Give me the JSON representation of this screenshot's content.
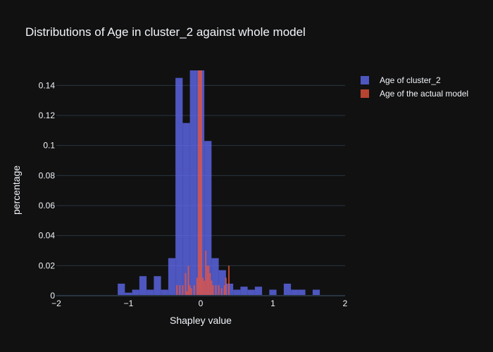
{
  "chart_data": {
    "type": "bar",
    "title": "Distributions of Age in cluster_2 against whole model",
    "xlabel": "Shapley value",
    "ylabel": "percentage",
    "xlim": [
      -2,
      2
    ],
    "ylim": [
      0,
      0.15
    ],
    "x_ticks": [
      -2,
      -1,
      0,
      1,
      2
    ],
    "x_tick_labels": [
      "−2",
      "−1",
      "0",
      "1",
      "2"
    ],
    "y_ticks": [
      0,
      0.02,
      0.04,
      0.06,
      0.08,
      0.1,
      0.12,
      0.14
    ],
    "y_tick_labels": [
      "0",
      "0.02",
      "0.04",
      "0.06",
      "0.08",
      "0.1",
      "0.12",
      "0.14"
    ],
    "grid": true,
    "legend_position": "top-right",
    "series": [
      {
        "name": "Age of cluster_2",
        "color": "#636efa",
        "opacity": 0.75,
        "bin_width": 0.1,
        "x": [
          -1.1,
          -1.0,
          -0.9,
          -0.8,
          -0.7,
          -0.6,
          -0.5,
          -0.4,
          -0.3,
          -0.2,
          -0.1,
          0.0,
          0.1,
          0.2,
          0.3,
          0.4,
          0.5,
          0.6,
          0.7,
          0.8,
          0.9,
          1.0,
          1.1,
          1.2,
          1.3,
          1.4,
          1.5,
          1.6,
          1.7
        ],
        "values": [
          0.008,
          0.002,
          0.004,
          0.013,
          0.004,
          0.013,
          0.004,
          0.025,
          0.145,
          0.115,
          0.15,
          0.15,
          0.103,
          0.025,
          0.017,
          0.008,
          0.004,
          0.006,
          0.004,
          0.006,
          0.0,
          0.004,
          0.0,
          0.008,
          0.004,
          0.004,
          0.0,
          0.004,
          0.0
        ]
      },
      {
        "name": "Age of the actual model",
        "color": "#ef553b",
        "opacity": 0.75,
        "bin_width": 0.02,
        "x": [
          -0.33,
          -0.29,
          -0.25,
          -0.21,
          -0.19,
          -0.17,
          -0.15,
          -0.13,
          -0.09,
          -0.05,
          -0.03,
          -0.01,
          0.01,
          0.03,
          0.05,
          0.07,
          0.09,
          0.11,
          0.13,
          0.15,
          0.17,
          0.21,
          0.25,
          0.29,
          0.33,
          0.35,
          0.39
        ],
        "values": [
          0.007,
          0.007,
          0.007,
          0.015,
          0.003,
          0.02,
          0.007,
          0.005,
          0.007,
          0.012,
          0.15,
          0.15,
          0.15,
          0.012,
          0.01,
          0.03,
          0.02,
          0.02,
          0.015,
          0.01,
          0.007,
          0.007,
          0.007,
          0.005,
          0.007,
          0.012,
          0.02
        ]
      }
    ]
  }
}
